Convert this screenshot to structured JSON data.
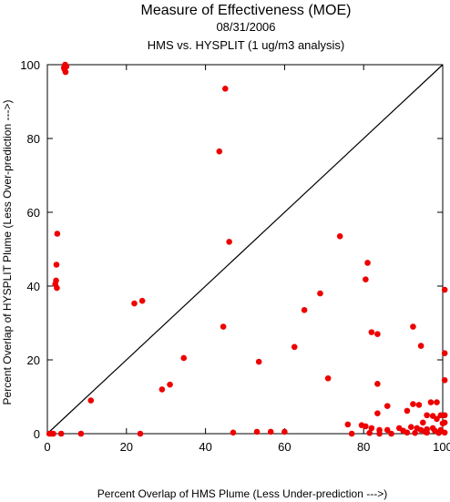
{
  "chart_data": {
    "type": "scatter",
    "title": "Measure of Effectiveness (MOE)",
    "subtitle_date": "08/31/2006",
    "subtitle_analysis": "HMS vs. HYSPLIT  (1 ug/m3 analysis)",
    "xlabel": "Percent Overlap of HMS Plume (Less Under-prediction --->)",
    "ylabel": "Percent Overlap of HYSPLIT Plume (Less Over-prediction --->)",
    "xlim": [
      0,
      100
    ],
    "ylim": [
      0,
      100
    ],
    "xticks": [
      0,
      20,
      40,
      60,
      80,
      100
    ],
    "yticks": [
      0,
      20,
      40,
      60,
      80,
      100
    ],
    "reference_line": "y = x",
    "grid": false,
    "point_color": "#ee0000",
    "line_color": "#000000",
    "points": [
      [
        4.5,
        100
      ],
      [
        4.8,
        99.5
      ],
      [
        4.3,
        98.8
      ],
      [
        4.6,
        98
      ],
      [
        4.2,
        99.2
      ],
      [
        45,
        93.5
      ],
      [
        43.5,
        76.5
      ],
      [
        2.5,
        54.2
      ],
      [
        46,
        52
      ],
      [
        2.3,
        45.8
      ],
      [
        2.2,
        41.5
      ],
      [
        2,
        40.5
      ],
      [
        2.4,
        39.5
      ],
      [
        74,
        53.5
      ],
      [
        81,
        46.3
      ],
      [
        80.5,
        41.8
      ],
      [
        100.5,
        39
      ],
      [
        69,
        38
      ],
      [
        24,
        36
      ],
      [
        22,
        35.3
      ],
      [
        65,
        33.5
      ],
      [
        82,
        27.5
      ],
      [
        83.5,
        27
      ],
      [
        44.5,
        29
      ],
      [
        92.5,
        29
      ],
      [
        94.5,
        23.8
      ],
      [
        62.5,
        23.5
      ],
      [
        100.5,
        21.8
      ],
      [
        34.5,
        20.5
      ],
      [
        53.5,
        19.5
      ],
      [
        71,
        15
      ],
      [
        100.5,
        14.5
      ],
      [
        83.5,
        13.5
      ],
      [
        31,
        13.3
      ],
      [
        29,
        12
      ],
      [
        11,
        9
      ],
      [
        97,
        8.5
      ],
      [
        98.5,
        8.5
      ],
      [
        92.5,
        8
      ],
      [
        94,
        7.8
      ],
      [
        86,
        7.5
      ],
      [
        91,
        6.2
      ],
      [
        96,
        5
      ],
      [
        97.5,
        4.8
      ],
      [
        99.5,
        5
      ],
      [
        100.5,
        5
      ],
      [
        98.5,
        4
      ],
      [
        83.5,
        5.5
      ],
      [
        95,
        3
      ],
      [
        100.5,
        3
      ],
      [
        100,
        2.8
      ],
      [
        76,
        2.5
      ],
      [
        79.5,
        2.3
      ],
      [
        80.5,
        2
      ],
      [
        82,
        1.5
      ],
      [
        89,
        1.5
      ],
      [
        86,
        1
      ],
      [
        93.5,
        1.5
      ],
      [
        94.5,
        1
      ],
      [
        96,
        1.2
      ],
      [
        99.5,
        1
      ],
      [
        97.5,
        1.5
      ],
      [
        92,
        1.8
      ],
      [
        84,
        1
      ],
      [
        90,
        0.8
      ],
      [
        95.5,
        0.5
      ],
      [
        98,
        0.8
      ],
      [
        0.5,
        0
      ],
      [
        1,
        0
      ],
      [
        1.5,
        0
      ],
      [
        3.5,
        0
      ],
      [
        8.5,
        0
      ],
      [
        23.5,
        0
      ],
      [
        47,
        0.3
      ],
      [
        56.5,
        0.5
      ],
      [
        60,
        0.5
      ],
      [
        53,
        0.5
      ],
      [
        77,
        0
      ],
      [
        81.5,
        0.2
      ],
      [
        84,
        0
      ],
      [
        87,
        0
      ],
      [
        91,
        0.3
      ],
      [
        93,
        0.2
      ],
      [
        96,
        0.3
      ],
      [
        99,
        0.2
      ],
      [
        100.5,
        0.3
      ]
    ]
  }
}
